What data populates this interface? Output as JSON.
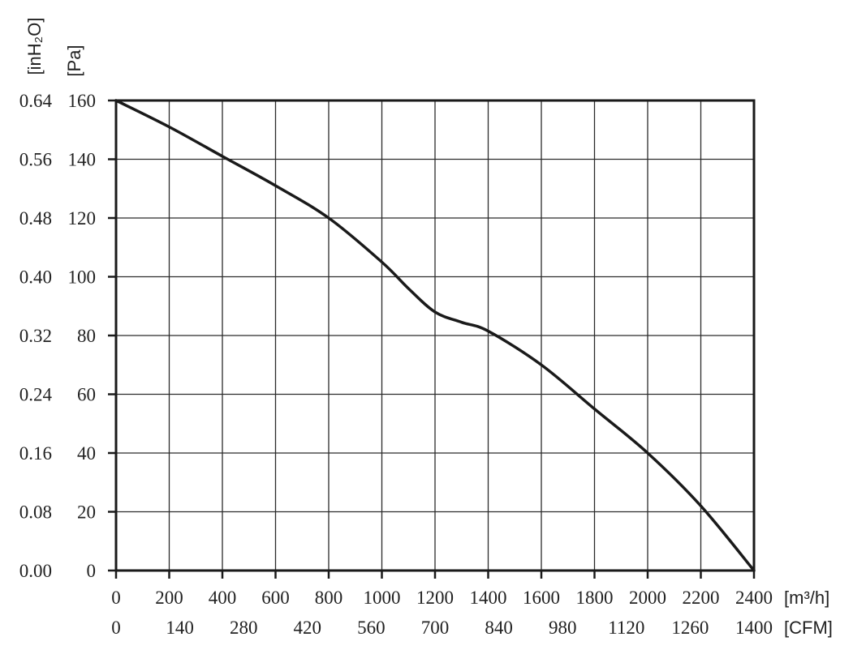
{
  "chart_data": {
    "type": "line",
    "title": "",
    "grid": true,
    "x_axes": [
      {
        "unit_label": "[m³/h]",
        "range": [
          0,
          2400
        ],
        "ticks": [
          "0",
          "200",
          "400",
          "600",
          "800",
          "1000",
          "1200",
          "1400",
          "1600",
          "1800",
          "2000",
          "2200",
          "2400"
        ]
      },
      {
        "unit_label": "[CFM]",
        "range": [
          0,
          1400
        ],
        "ticks": [
          "0",
          "140",
          "280",
          "420",
          "560",
          "700",
          "840",
          "980",
          "1120",
          "1260",
          "1400"
        ]
      }
    ],
    "y_axes": [
      {
        "unit_label": "[inH₂O]",
        "range": [
          0,
          0.64
        ],
        "ticks": [
          "0.00",
          "0.08",
          "0.16",
          "0.24",
          "0.32",
          "0.40",
          "0.48",
          "0.56",
          "0.64"
        ]
      },
      {
        "unit_label": "[Pa]",
        "range": [
          0,
          160
        ],
        "ticks": [
          "0",
          "20",
          "40",
          "60",
          "80",
          "100",
          "120",
          "140",
          "160"
        ]
      }
    ],
    "series": [
      {
        "x_unit": "m³/h",
        "y_unit": "Pa",
        "points": [
          [
            0,
            160
          ],
          [
            200,
            151
          ],
          [
            400,
            141
          ],
          [
            600,
            131
          ],
          [
            800,
            120
          ],
          [
            1000,
            105
          ],
          [
            1100,
            96
          ],
          [
            1200,
            88
          ],
          [
            1300,
            84.5
          ],
          [
            1400,
            81.5
          ],
          [
            1600,
            70
          ],
          [
            1800,
            55
          ],
          [
            2000,
            40
          ],
          [
            2200,
            22
          ],
          [
            2400,
            0
          ]
        ]
      }
    ]
  }
}
